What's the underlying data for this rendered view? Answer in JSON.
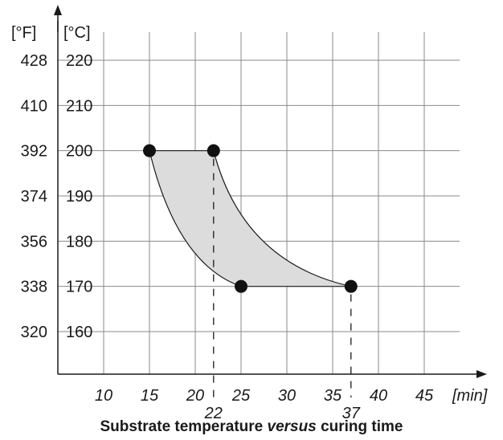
{
  "chart_data": {
    "type": "area",
    "caption": {
      "before": "Substrate temperature ",
      "italic": "versus",
      "after": " curing time"
    },
    "x_axis": {
      "ticks": [
        10,
        15,
        20,
        25,
        30,
        35,
        40,
        45
      ],
      "unit_label": "[min]",
      "marked_values": [
        22,
        37
      ],
      "range": [
        5,
        48
      ]
    },
    "y_axis": {
      "celsius_ticks": [
        160,
        170,
        180,
        190,
        200,
        210,
        220
      ],
      "fahrenheit_ticks": [
        320,
        338,
        356,
        374,
        392,
        410,
        428
      ],
      "celsius_label": "[°C]",
      "fahrenheit_label": "[°F]",
      "range": [
        150,
        225
      ]
    },
    "grid": true,
    "region": {
      "fill_color": "#dcdcdc",
      "points": [
        {
          "x": 15,
          "y": 200
        },
        {
          "x": 22,
          "y": 200
        },
        {
          "x": 37,
          "y": 170
        },
        {
          "x": 25,
          "y": 170
        }
      ]
    }
  }
}
